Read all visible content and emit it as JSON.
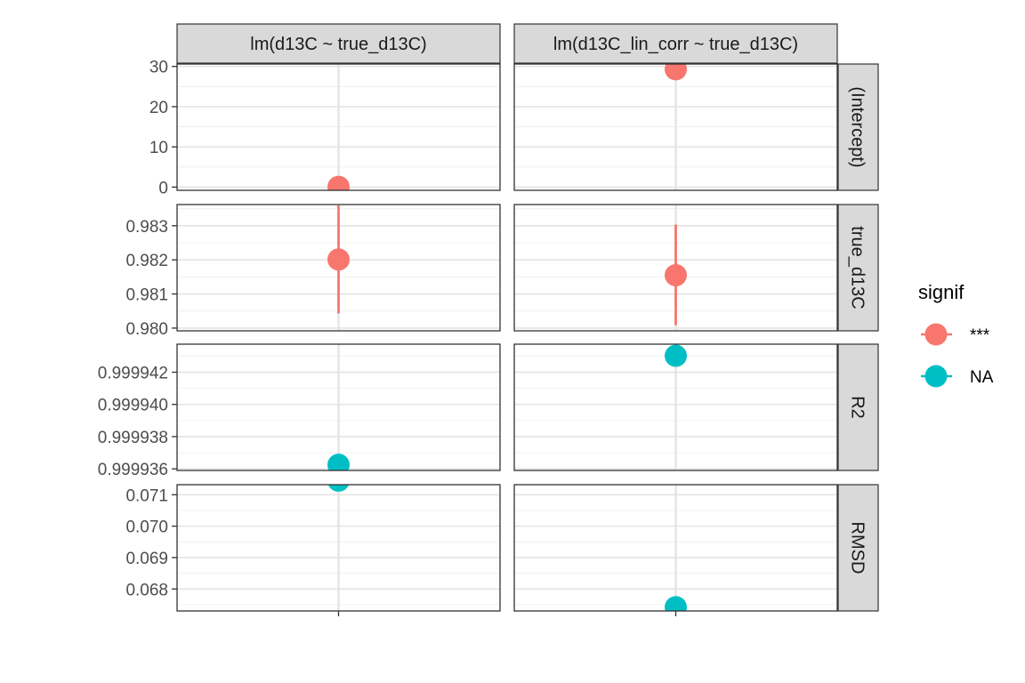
{
  "chart_data": {
    "type": "scatter",
    "title": "",
    "xlabel": "",
    "ylabel": "",
    "grid": true,
    "legend_position": "right",
    "col_facets": [
      "lm(d13C ~ true_d13C)",
      "lm(d13C_lin_corr ~ true_d13C)"
    ],
    "row_facets": [
      {
        "label": "(Intercept)",
        "ylim": [
          -0.8,
          30.6
        ],
        "ticks": [
          0,
          10,
          20,
          30
        ],
        "tick_labels": [
          "0",
          "10",
          "20",
          "30"
        ]
      },
      {
        "label": "true_d13C",
        "ylim": [
          0.97992,
          0.98362
        ],
        "ticks": [
          0.98,
          0.981,
          0.982,
          0.983
        ],
        "tick_labels": [
          "0.980",
          "0.981",
          "0.982",
          "0.983"
        ]
      },
      {
        "label": "R2",
        "ylim": [
          0.9999359,
          0.99994374
        ],
        "ticks": [
          0.999936,
          0.999938,
          0.99994,
          0.999942
        ],
        "tick_labels": [
          "0.999936",
          "0.999938",
          "0.999940",
          "0.999942"
        ]
      },
      {
        "label": "RMSD",
        "ylim": [
          0.0673,
          0.07132
        ],
        "ticks": [
          0.068,
          0.069,
          0.07,
          0.071
        ],
        "tick_labels": [
          "0.068",
          "0.069",
          "0.070",
          "0.071"
        ]
      }
    ],
    "points": [
      {
        "col": 0,
        "row": 0,
        "y": 0.05,
        "signif": "***"
      },
      {
        "col": 1,
        "row": 0,
        "y": 29.3,
        "signif": "***"
      },
      {
        "col": 0,
        "row": 1,
        "y": 0.98201,
        "ymin": 0.98043,
        "ymax": 0.98359,
        "signif": "***"
      },
      {
        "col": 1,
        "row": 1,
        "y": 0.98155,
        "ymin": 0.98009,
        "ymax": 0.98303,
        "signif": "***"
      },
      {
        "col": 0,
        "row": 2,
        "y": 0.99993625,
        "signif": "NA"
      },
      {
        "col": 1,
        "row": 2,
        "y": 0.99994302,
        "signif": "NA"
      },
      {
        "col": 0,
        "row": 3,
        "y": 0.07145,
        "signif": "NA"
      },
      {
        "col": 1,
        "row": 3,
        "y": 0.06742,
        "signif": "NA"
      }
    ],
    "legend": {
      "title": "signif",
      "entries": [
        {
          "label": "***",
          "color": "#F8766D"
        },
        {
          "label": "NA",
          "color": "#00BFC4"
        }
      ]
    }
  }
}
